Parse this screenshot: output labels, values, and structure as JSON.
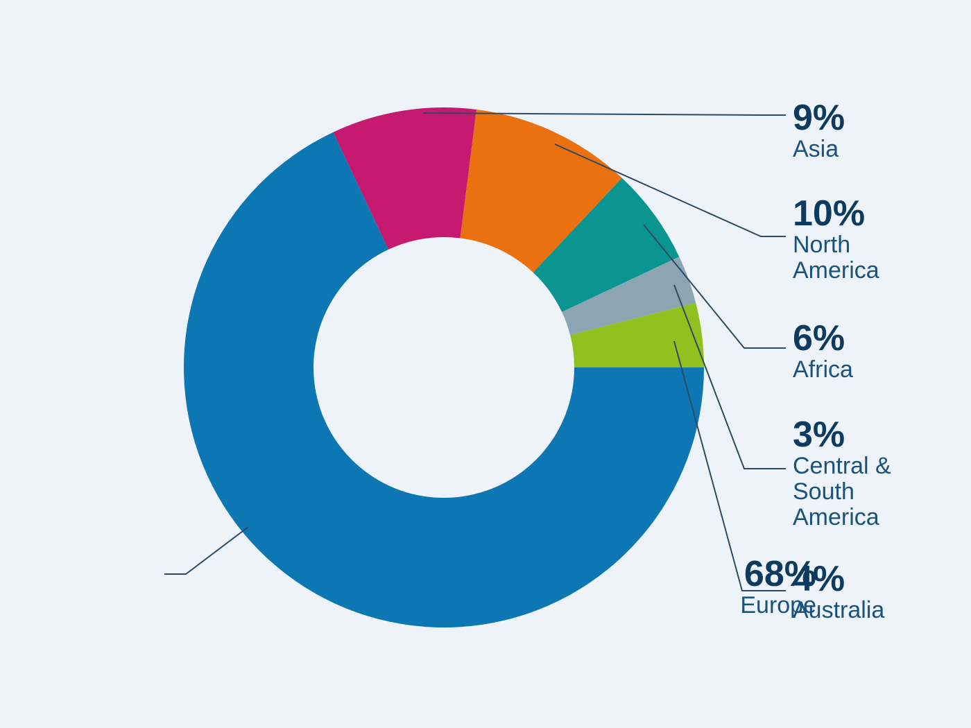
{
  "chart_data": {
    "type": "donut",
    "unit": "percent",
    "direction": "clockwise",
    "start_angle_deg": -25.2,
    "background_color": "#edf3f8",
    "leader_line_color": "#2e4a63",
    "percent_text_color": "#0d3a5f",
    "name_text_color": "#19527b",
    "segments": [
      {
        "name": "Asia",
        "value": 9,
        "display": "9%",
        "color": "#c51a70"
      },
      {
        "name": "North America",
        "value": 10,
        "display": "10%",
        "color": "#eb700f"
      },
      {
        "name": "Africa",
        "value": 6,
        "display": "6%",
        "color": "#0a9590"
      },
      {
        "name": "Central & South America",
        "value": 3,
        "display": "3%",
        "color": "#8da4b2"
      },
      {
        "name": "Australia",
        "value": 4,
        "display": "4%",
        "color": "#90c11e"
      },
      {
        "name": "Europe",
        "value": 68,
        "display": "68%",
        "color": "#0c77b3"
      }
    ]
  }
}
